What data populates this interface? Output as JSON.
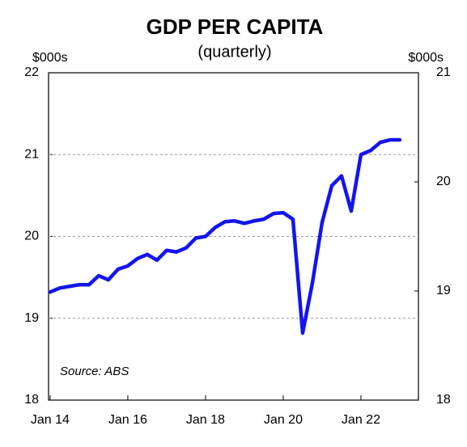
{
  "chart_data": {
    "type": "line",
    "title": "GDP PER CAPITA",
    "subtitle": "(quarterly)",
    "y_label": "$000s",
    "y2_label": "$000s",
    "annotation": "Source: ABS",
    "x": [
      2014,
      2014.25,
      2014.5,
      2014.75,
      2015,
      2015.25,
      2015.5,
      2015.75,
      2016,
      2016.25,
      2016.5,
      2016.75,
      2017,
      2017.25,
      2017.5,
      2017.75,
      2018,
      2018.25,
      2018.5,
      2018.75,
      2019,
      2019.25,
      2019.5,
      2019.75,
      2020,
      2020.25,
      2020.5,
      2020.75,
      2021,
      2021.25,
      2021.5,
      2021.75,
      2022,
      2022.25,
      2022.5,
      2022.75,
      2023
    ],
    "series": [
      {
        "name": "GDP per capita",
        "color": "#1414f0",
        "values": [
          19.32,
          19.37,
          19.39,
          19.41,
          19.41,
          19.52,
          19.47,
          19.6,
          19.64,
          19.73,
          19.78,
          19.71,
          19.83,
          19.81,
          19.86,
          19.98,
          20.0,
          20.11,
          20.18,
          20.19,
          20.16,
          20.19,
          20.21,
          20.28,
          20.29,
          20.21,
          18.82,
          19.43,
          20.17,
          20.62,
          20.74,
          20.31,
          21.0,
          21.05,
          21.15,
          21.18,
          21.18
        ]
      }
    ],
    "xlim": [
      2013.96,
      2023.48
    ],
    "xticks": [
      {
        "value": 2014,
        "label": "Jan 14"
      },
      {
        "value": 2016,
        "label": "Jan 16"
      },
      {
        "value": 2018,
        "label": "Jan 18"
      },
      {
        "value": 2020,
        "label": "Jan 20"
      },
      {
        "value": 2022,
        "label": "Jan 22"
      }
    ],
    "ylim": [
      18,
      22
    ],
    "yticks": [
      18,
      19,
      20,
      21,
      22
    ],
    "y2lim": [
      18,
      21
    ],
    "y2ticks": [
      18,
      19,
      20,
      21
    ],
    "grid": true
  }
}
